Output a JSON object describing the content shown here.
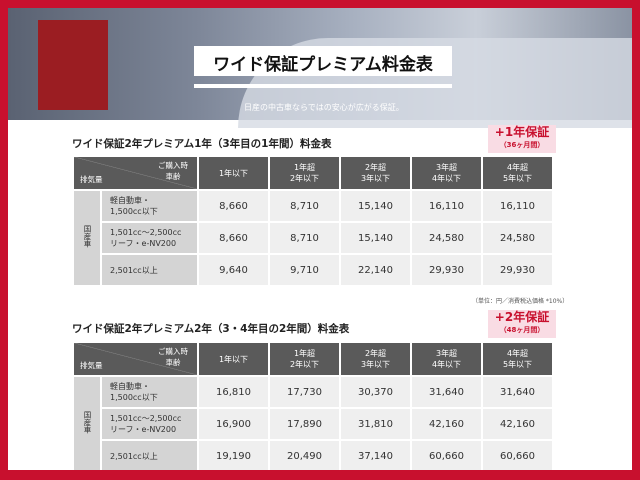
{
  "header": {
    "title": "ワイド保証プレミアム料金表",
    "subtitle": "日産の中古車ならではの安心が広がる保証。"
  },
  "columns": {
    "corner_top": "ご購入時車齢",
    "corner_bottom": "排気量",
    "headers": [
      [
        "1年以下",
        ""
      ],
      [
        "1年超",
        "2年以下"
      ],
      [
        "2年超",
        "3年以下"
      ],
      [
        "3年超",
        "4年以下"
      ],
      [
        "4年超",
        "5年以下"
      ]
    ]
  },
  "category": "国産車",
  "row_labels": [
    [
      "軽自動車・",
      "1,500cc以下"
    ],
    [
      "1,501cc〜2,500cc",
      "リーフ・e-NV200"
    ],
    [
      "2,501cc以上",
      ""
    ]
  ],
  "tables": [
    {
      "title": "ワイド保証2年プレミアム1年（3年目の1年間）料金表",
      "badge_main": "+1年保証",
      "badge_sub": "（36ヶ月間）",
      "rows": [
        [
          "8,660",
          "8,710",
          "15,140",
          "16,110",
          "16,110"
        ],
        [
          "8,660",
          "8,710",
          "15,140",
          "24,580",
          "24,580"
        ],
        [
          "9,640",
          "9,710",
          "22,140",
          "29,930",
          "29,930"
        ]
      ]
    },
    {
      "title": "ワイド保証2年プレミアム2年（3・4年目の2年間）料金表",
      "badge_main": "+2年保証",
      "badge_sub": "（48ヶ月間）",
      "rows": [
        [
          "16,810",
          "17,730",
          "30,370",
          "31,640",
          "31,640"
        ],
        [
          "16,900",
          "17,890",
          "31,810",
          "42,160",
          "42,160"
        ],
        [
          "19,190",
          "20,490",
          "37,140",
          "60,660",
          "60,660"
        ]
      ]
    }
  ],
  "note": "（単位：円／消費税込価格 *10%）",
  "colors": {
    "border": "#c8102e",
    "header_cell": "#5a5a5a",
    "badge_bg": "#f9dce4"
  }
}
